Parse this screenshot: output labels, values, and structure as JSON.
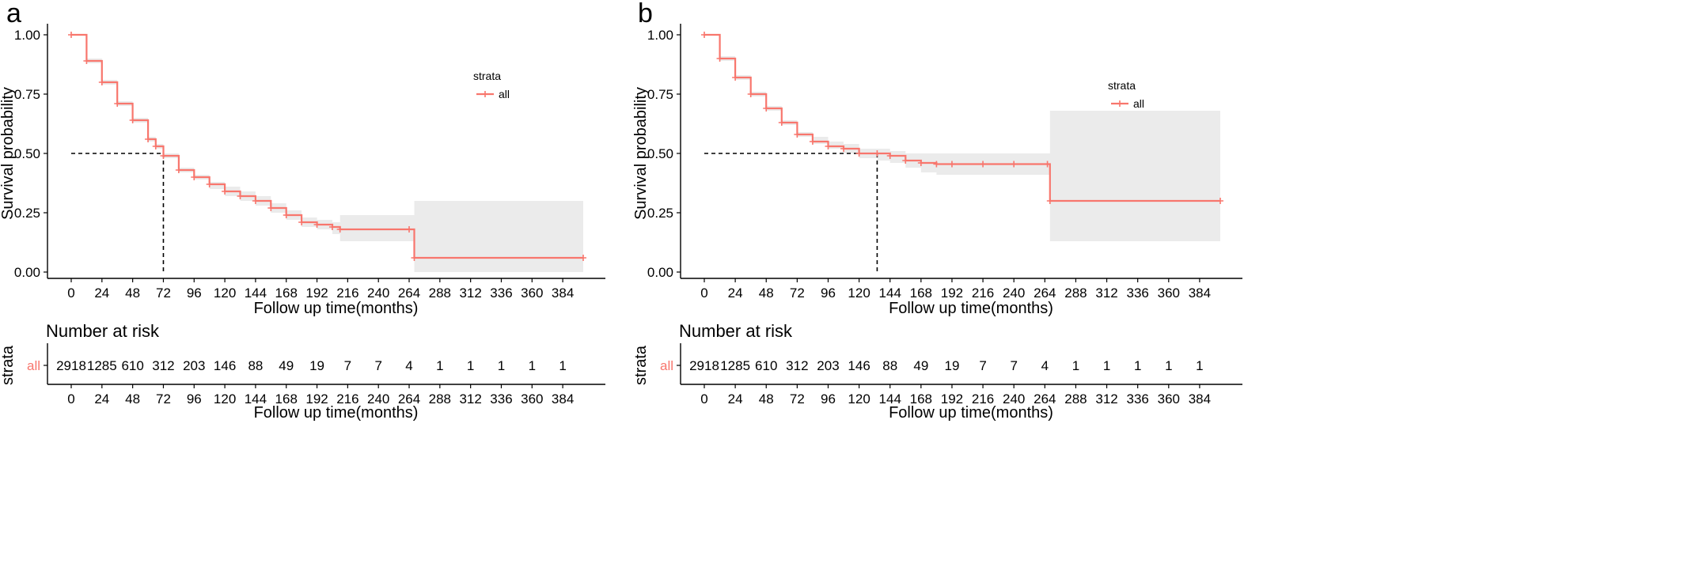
{
  "chart_data": [
    {
      "panel_label": "a",
      "type": "line",
      "subtype": "kaplan-meier step",
      "xlabel": "Follow up time(months)",
      "ylabel": "Survival probability",
      "xlim": [
        0,
        396
      ],
      "ylim": [
        0,
        1
      ],
      "x_ticks": [
        0,
        24,
        48,
        72,
        96,
        120,
        144,
        168,
        192,
        216,
        240,
        264,
        288,
        312,
        336,
        360,
        384
      ],
      "y_ticks": [
        "0.00",
        "0.25",
        "0.50",
        "0.75",
        "1.00"
      ],
      "grid": false,
      "legend": {
        "title": "strata",
        "entries": [
          "all"
        ],
        "placement": "top-right"
      },
      "colors": {
        "curve": "#F8766D",
        "ci_band": "#EBEBEB",
        "median_line": "#000000"
      },
      "median_survival_x": 72,
      "series": [
        {
          "name": "all",
          "x": [
            0,
            12,
            24,
            36,
            48,
            60,
            66,
            72,
            84,
            96,
            108,
            120,
            132,
            144,
            156,
            168,
            180,
            192,
            204,
            210,
            264,
            268,
            400
          ],
          "y": [
            1.0,
            0.89,
            0.8,
            0.71,
            0.64,
            0.56,
            0.53,
            0.49,
            0.43,
            0.4,
            0.37,
            0.34,
            0.32,
            0.3,
            0.27,
            0.24,
            0.21,
            0.2,
            0.19,
            0.18,
            0.18,
            0.06,
            0.06
          ],
          "ci_lower": [
            1.0,
            0.88,
            0.79,
            0.7,
            0.63,
            0.55,
            0.52,
            0.48,
            0.42,
            0.39,
            0.35,
            0.32,
            0.3,
            0.28,
            0.25,
            0.22,
            0.19,
            0.18,
            0.16,
            0.13,
            0.13,
            0.0,
            0.0
          ],
          "ci_upper": [
            1.0,
            0.9,
            0.81,
            0.72,
            0.65,
            0.57,
            0.54,
            0.5,
            0.44,
            0.41,
            0.38,
            0.36,
            0.34,
            0.32,
            0.29,
            0.26,
            0.23,
            0.22,
            0.21,
            0.24,
            0.24,
            0.3,
            0.3
          ]
        }
      ],
      "risk_table": {
        "title": "Number at risk",
        "row_axis_label": "strata",
        "row_label": "all",
        "xlabel": "Follow up time(months)",
        "times": [
          0,
          24,
          48,
          72,
          96,
          120,
          144,
          168,
          192,
          216,
          240,
          264,
          288,
          312,
          336,
          360,
          384
        ],
        "counts": [
          2918,
          1285,
          610,
          312,
          203,
          146,
          88,
          49,
          19,
          7,
          7,
          4,
          1,
          1,
          1,
          1,
          1
        ]
      }
    },
    {
      "panel_label": "b",
      "type": "line",
      "subtype": "kaplan-meier step",
      "xlabel": "Follow up time(months)",
      "ylabel": "Survival probability",
      "xlim": [
        0,
        396
      ],
      "ylim": [
        0,
        1
      ],
      "x_ticks": [
        0,
        24,
        48,
        72,
        96,
        120,
        144,
        168,
        192,
        216,
        240,
        264,
        288,
        312,
        336,
        360,
        384
      ],
      "y_ticks": [
        "0.00",
        "0.25",
        "0.50",
        "0.75",
        "1.00"
      ],
      "grid": false,
      "legend": {
        "title": "strata",
        "entries": [
          "all"
        ],
        "placement": "top-right"
      },
      "colors": {
        "curve": "#F8766D",
        "ci_band": "#EBEBEB",
        "median_line": "#000000"
      },
      "median_survival_x": 134,
      "series": [
        {
          "name": "all",
          "x": [
            0,
            12,
            24,
            36,
            48,
            60,
            72,
            84,
            96,
            108,
            120,
            134,
            144,
            156,
            168,
            180,
            192,
            216,
            240,
            266,
            268,
            400
          ],
          "y": [
            1.0,
            0.9,
            0.82,
            0.75,
            0.69,
            0.63,
            0.58,
            0.55,
            0.53,
            0.52,
            0.5,
            0.5,
            0.49,
            0.47,
            0.46,
            0.455,
            0.455,
            0.455,
            0.455,
            0.455,
            0.3,
            0.3
          ],
          "ci_lower": [
            1.0,
            0.89,
            0.81,
            0.74,
            0.68,
            0.62,
            0.57,
            0.54,
            0.52,
            0.5,
            0.48,
            0.47,
            0.46,
            0.44,
            0.42,
            0.41,
            0.41,
            0.41,
            0.41,
            0.41,
            0.13,
            0.13
          ],
          "ci_upper": [
            1.0,
            0.91,
            0.83,
            0.76,
            0.7,
            0.64,
            0.59,
            0.57,
            0.55,
            0.54,
            0.52,
            0.52,
            0.51,
            0.5,
            0.5,
            0.5,
            0.5,
            0.5,
            0.5,
            0.5,
            0.68,
            0.68
          ]
        }
      ],
      "risk_table": {
        "title": "Number at risk",
        "row_axis_label": "strata",
        "row_label": "all",
        "xlabel": "Follow up time(months)",
        "times": [
          0,
          24,
          48,
          72,
          96,
          120,
          144,
          168,
          192,
          216,
          240,
          264,
          288,
          312,
          336,
          360,
          384
        ],
        "counts": [
          2918,
          1285,
          610,
          312,
          203,
          146,
          88,
          49,
          19,
          7,
          7,
          4,
          1,
          1,
          1,
          1,
          1
        ]
      }
    }
  ]
}
